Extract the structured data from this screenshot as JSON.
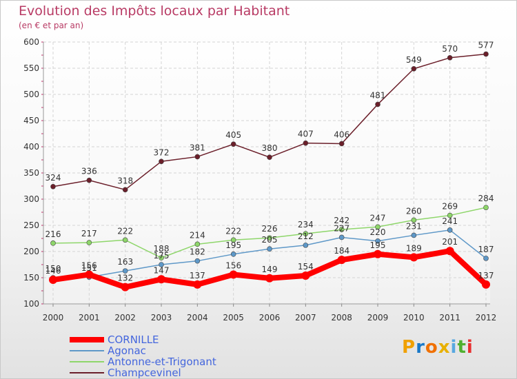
{
  "title": "Evolution des Impôts locaux par Habitant",
  "subtitle": "(en € et par an)",
  "logo": {
    "letters": [
      "P",
      "r",
      "o",
      "x",
      "i",
      "t",
      "i"
    ],
    "colors": [
      "#f0a000",
      "#1878c8",
      "#f07000",
      "#e8b000",
      "#58a8e0",
      "#50b030",
      "#e83030"
    ]
  },
  "chart_data": {
    "type": "line",
    "title": "Evolution des Impôts locaux par Habitant",
    "subtitle": "(en € et par an)",
    "x": [
      "2000",
      "2001",
      "2002",
      "2003",
      "2004",
      "2005",
      "2006",
      "2007",
      "2008",
      "2009",
      "2010",
      "2011",
      "2012"
    ],
    "ylim": [
      100,
      600
    ],
    "yticks": [
      100,
      150,
      200,
      250,
      300,
      350,
      400,
      450,
      500,
      550,
      600
    ],
    "grid": true,
    "legend": "bottom-left",
    "series": [
      {
        "name": "Champcevinel",
        "color": "#6b1f2a",
        "values": [
          324,
          336,
          318,
          372,
          381,
          405,
          380,
          407,
          406,
          481,
          549,
          570,
          577
        ]
      },
      {
        "name": "Antonne-et-Trigonant",
        "color": "#8ed66a",
        "values": [
          216,
          217,
          222,
          188,
          214,
          222,
          226,
          234,
          242,
          247,
          260,
          269,
          284
        ]
      },
      {
        "name": "Agonac",
        "color": "#5e98c8",
        "values": [
          150,
          151,
          163,
          175,
          182,
          195,
          205,
          212,
          227,
          220,
          231,
          241,
          187
        ]
      },
      {
        "name": "CORNILLE",
        "color": "#ff0000",
        "values": [
          146,
          156,
          132,
          147,
          137,
          156,
          149,
          154,
          184,
          195,
          189,
          201,
          137
        ]
      }
    ],
    "data_labels": {
      "Champcevinel": [
        "324",
        "336",
        "318",
        "372",
        "381",
        "405",
        "380",
        "407",
        "406",
        "481",
        "549",
        "570",
        "577"
      ],
      "Antonne-et-Trigonant": [
        "216",
        "217",
        "222",
        "188",
        "214",
        "222",
        "226",
        "234",
        "242",
        "247",
        "260",
        "269",
        "284"
      ],
      "Agonac": [
        "150",
        "151",
        "163",
        "175",
        "182",
        "195",
        "205",
        "212",
        "227",
        "220",
        "231",
        "241",
        "187"
      ],
      "CORNILLE": [
        "146",
        "156",
        "132",
        "147",
        "137",
        "156",
        "149",
        "154",
        "184",
        "195",
        "189",
        "201",
        "137"
      ]
    }
  },
  "legend": [
    {
      "name": "CORNILLE",
      "color": "#ff0000"
    },
    {
      "name": "Agonac",
      "color": "#5e98c8"
    },
    {
      "name": "Antonne-et-Trigonant",
      "color": "#8ed66a"
    },
    {
      "name": "Champcevinel",
      "color": "#6b1f2a"
    }
  ]
}
